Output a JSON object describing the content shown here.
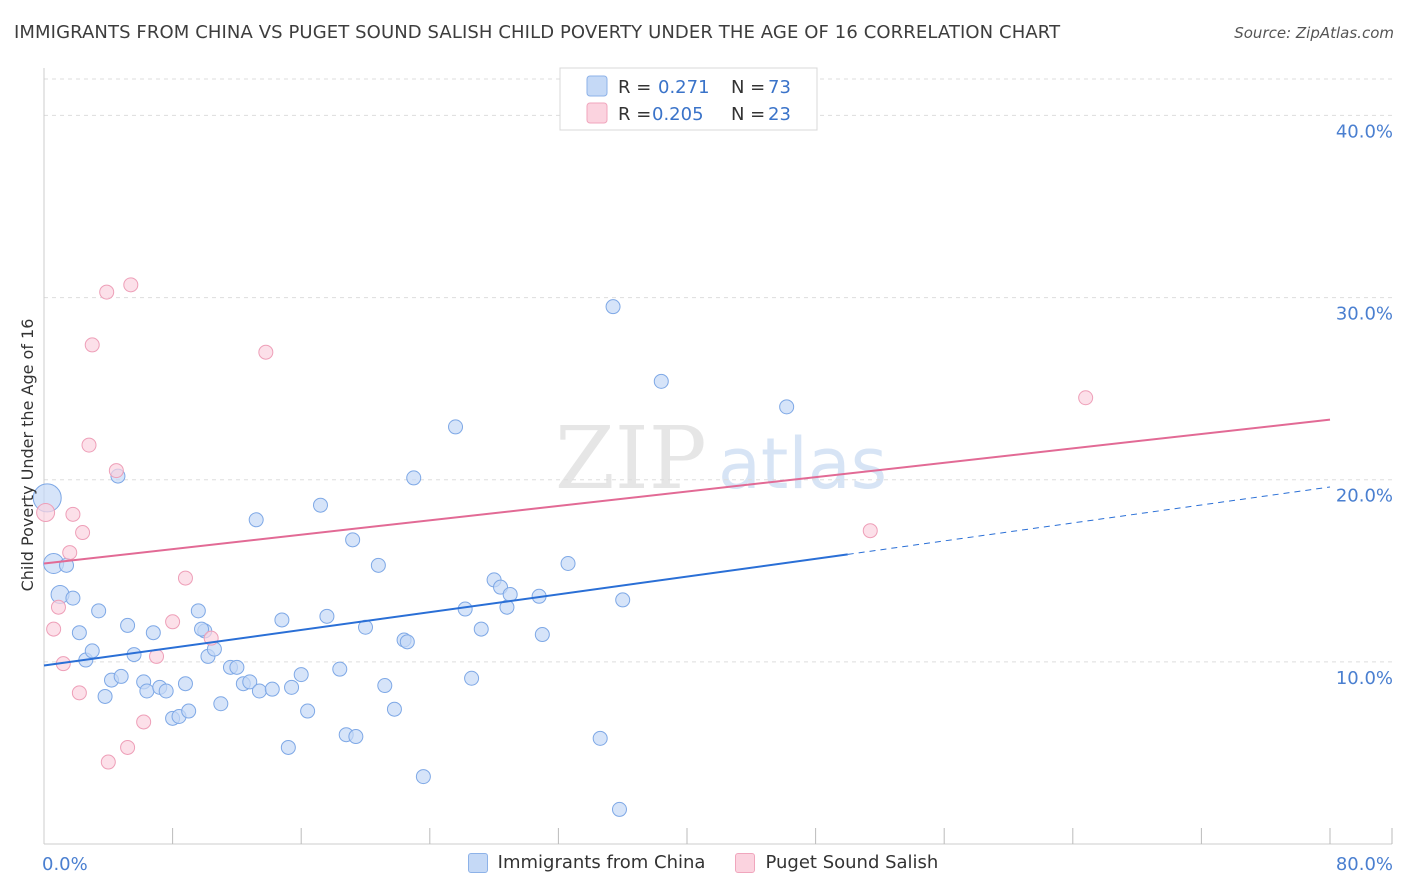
{
  "header": {
    "title": "IMMIGRANTS FROM CHINA VS PUGET SOUND SALISH CHILD POVERTY UNDER THE AGE OF 16 CORRELATION CHART",
    "source": "Source: ZipAtlas.com"
  },
  "watermark": {
    "zip": "ZIP",
    "atlas": "atlas"
  },
  "colors": {
    "blue_fill": "#c5d9f6",
    "blue_stroke": "#7ea8e6",
    "blue_line": "#2a6fd6",
    "pink_fill": "#fbd3df",
    "pink_stroke": "#ee9fb8",
    "pink_line": "#e26a95",
    "grid": "#dddddd",
    "tick_label": "#4a7fd0"
  },
  "legend": {
    "series": [
      {
        "r_label": "R = ",
        "r_value": "0.271",
        "n_label": "N = ",
        "n_value": "73"
      },
      {
        "r_label": "R = ",
        "r_value": "0.205",
        "n_label": "N = ",
        "n_value": "23"
      }
    ]
  },
  "bottom_legend": {
    "blue_label": "Immigrants from China",
    "pink_label": "Puget Sound Salish"
  },
  "chart_data": {
    "type": "scatter",
    "ylabel": "Child Poverty Under the Age of 16",
    "xlim": [
      0,
      80
    ],
    "ylim": [
      0,
      42
    ],
    "x_tick_labels": [
      {
        "value": 0,
        "label": "0.0%"
      },
      {
        "value": 80,
        "label": "80.0%"
      }
    ],
    "x_minor_ticks": [
      8,
      16,
      24,
      32,
      40,
      48,
      56,
      64,
      72
    ],
    "y_ticks": [
      {
        "value": 10,
        "label": "10.0%"
      },
      {
        "value": 20,
        "label": "20.0%"
      },
      {
        "value": 30,
        "label": "30.0%"
      },
      {
        "value": 40,
        "label": "40.0%"
      }
    ],
    "series": [
      {
        "name": "Immigrants from China",
        "color": "blue",
        "r": 0.271,
        "n": 73,
        "trend": {
          "x0": 0,
          "y0": 9.8,
          "x1": 50,
          "y1": 15.9,
          "dash_x1": 80,
          "dash_y1": 19.6
        },
        "points": [
          [
            0.2,
            19.0,
            14
          ],
          [
            0.6,
            15.4,
            10
          ],
          [
            1.0,
            13.7,
            9
          ],
          [
            1.4,
            15.3,
            7
          ],
          [
            1.8,
            13.5,
            7
          ],
          [
            2.2,
            11.6,
            7
          ],
          [
            2.6,
            10.1,
            7
          ],
          [
            3.0,
            10.6,
            7
          ],
          [
            3.4,
            12.8,
            7
          ],
          [
            3.8,
            8.1,
            7
          ],
          [
            4.2,
            9.0,
            7
          ],
          [
            4.8,
            9.2,
            7
          ],
          [
            5.2,
            12.0,
            7
          ],
          [
            5.6,
            10.4,
            7
          ],
          [
            6.2,
            8.9,
            7
          ],
          [
            6.4,
            8.4,
            7
          ],
          [
            6.8,
            11.6,
            7
          ],
          [
            7.2,
            8.6,
            7
          ],
          [
            7.6,
            8.4,
            7
          ],
          [
            8.0,
            6.9,
            7
          ],
          [
            8.4,
            7.0,
            7
          ],
          [
            8.8,
            8.8,
            7
          ],
          [
            9.0,
            7.3,
            7
          ],
          [
            9.6,
            12.8,
            7
          ],
          [
            10.0,
            11.7,
            7
          ],
          [
            10.2,
            10.3,
            7
          ],
          [
            10.6,
            10.7,
            7
          ],
          [
            11.0,
            7.7,
            7
          ],
          [
            11.6,
            9.7,
            7
          ],
          [
            12.0,
            9.7,
            7
          ],
          [
            12.4,
            8.8,
            7
          ],
          [
            12.8,
            8.9,
            7
          ],
          [
            13.4,
            8.4,
            7
          ],
          [
            14.2,
            8.5,
            7
          ],
          [
            14.8,
            12.3,
            7
          ],
          [
            15.2,
            5.3,
            7
          ],
          [
            15.4,
            8.6,
            7
          ],
          [
            16.0,
            9.3,
            7
          ],
          [
            16.4,
            7.3,
            7
          ],
          [
            17.2,
            18.6,
            7
          ],
          [
            17.6,
            12.5,
            7
          ],
          [
            18.4,
            9.6,
            7
          ],
          [
            18.8,
            6.0,
            7
          ],
          [
            19.2,
            16.7,
            7
          ],
          [
            19.4,
            5.9,
            7
          ],
          [
            20.0,
            11.9,
            7
          ],
          [
            20.8,
            15.3,
            7
          ],
          [
            21.2,
            8.7,
            7
          ],
          [
            21.8,
            7.4,
            7
          ],
          [
            22.4,
            11.2,
            7
          ],
          [
            22.6,
            11.1,
            7
          ],
          [
            23.0,
            20.1,
            7
          ],
          [
            23.6,
            3.7,
            7
          ],
          [
            25.6,
            22.9,
            7
          ],
          [
            26.2,
            12.9,
            7
          ],
          [
            26.6,
            9.1,
            7
          ],
          [
            27.2,
            11.8,
            7
          ],
          [
            28.0,
            14.5,
            7
          ],
          [
            28.4,
            14.1,
            7
          ],
          [
            28.8,
            13.0,
            7
          ],
          [
            29.0,
            13.7,
            7
          ],
          [
            30.8,
            13.6,
            7
          ],
          [
            31.0,
            11.5,
            7
          ],
          [
            32.6,
            15.4,
            7
          ],
          [
            34.6,
            5.8,
            7
          ],
          [
            35.4,
            29.5,
            7
          ],
          [
            36.0,
            13.4,
            7
          ],
          [
            35.8,
            1.9,
            7
          ],
          [
            38.4,
            25.4,
            7
          ],
          [
            46.2,
            24.0,
            7
          ],
          [
            4.6,
            20.2,
            7
          ],
          [
            13.2,
            17.8,
            7
          ],
          [
            9.8,
            11.8,
            7
          ]
        ]
      },
      {
        "name": "Puget Sound Salish",
        "color": "pink",
        "r": 0.205,
        "n": 23,
        "trend": {
          "x0": 0,
          "y0": 15.4,
          "x1": 80,
          "y1": 23.3
        },
        "points": [
          [
            0.1,
            18.2,
            9
          ],
          [
            0.6,
            11.8,
            7
          ],
          [
            0.9,
            13.0,
            7
          ],
          [
            1.2,
            9.9,
            7
          ],
          [
            1.6,
            16.0,
            7
          ],
          [
            1.8,
            18.1,
            7
          ],
          [
            2.2,
            8.3,
            7
          ],
          [
            2.4,
            17.1,
            7
          ],
          [
            2.8,
            21.9,
            7
          ],
          [
            3.0,
            27.4,
            7
          ],
          [
            3.9,
            30.3,
            7
          ],
          [
            4.0,
            4.5,
            7
          ],
          [
            4.5,
            20.5,
            7
          ],
          [
            5.2,
            5.3,
            7
          ],
          [
            5.4,
            30.7,
            7
          ],
          [
            6.2,
            6.7,
            7
          ],
          [
            7.0,
            10.3,
            7
          ],
          [
            8.0,
            12.2,
            7
          ],
          [
            8.8,
            14.6,
            7
          ],
          [
            10.4,
            11.3,
            7
          ],
          [
            13.8,
            27.0,
            7
          ],
          [
            51.4,
            17.2,
            7
          ],
          [
            64.8,
            24.5,
            7
          ]
        ]
      }
    ]
  }
}
